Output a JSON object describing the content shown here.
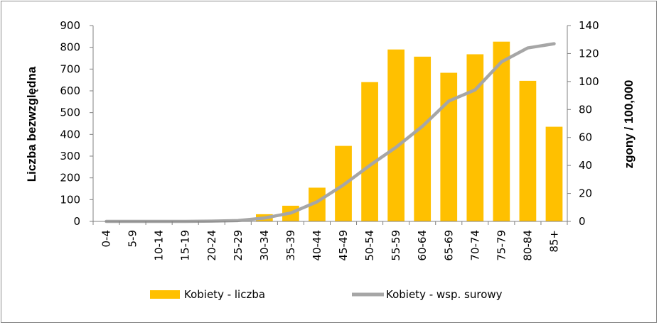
{
  "chart_data": {
    "type": "bar",
    "categories": [
      "0-4",
      "5-9",
      "10-14",
      "15-19",
      "20-24",
      "25-29",
      "30-34",
      "35-39",
      "40-44",
      "45-49",
      "50-54",
      "55-59",
      "60-64",
      "65-69",
      "70-74",
      "75-79",
      "80-84",
      "85+"
    ],
    "series": [
      {
        "name": "Kobiety - liczba",
        "type": "bar",
        "axis": "left",
        "color": "#FFC000",
        "values": [
          0,
          0,
          0,
          0,
          0,
          0,
          33,
          72,
          155,
          347,
          640,
          790,
          757,
          683,
          768,
          826,
          646,
          435
        ]
      },
      {
        "name": "Kobiety - wsp. surowy",
        "type": "line",
        "axis": "right",
        "color": "#A6A6A6",
        "values": [
          0,
          0,
          0,
          0,
          0.2,
          0.6,
          2.4,
          6,
          14,
          26,
          40,
          53,
          68,
          86,
          94,
          114,
          124,
          127
        ]
      }
    ],
    "y_left": {
      "label": "Liczba bezwzględna",
      "lim": [
        0,
        900
      ],
      "ticks": [
        0,
        100,
        200,
        300,
        400,
        500,
        600,
        700,
        800,
        900
      ]
    },
    "y_right": {
      "label": "zgony / 100,000",
      "lim": [
        0,
        140
      ],
      "ticks": [
        0,
        20,
        40,
        60,
        80,
        100,
        120,
        140
      ]
    },
    "legend": {
      "placement": "bottom-center"
    },
    "grid": false
  }
}
